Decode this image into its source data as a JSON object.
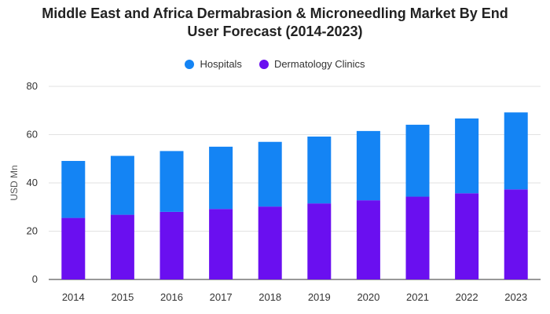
{
  "chart_data": {
    "type": "bar",
    "stacked": true,
    "title_line1": "Middle East and Africa Dermabrasion & Microneedling Market By End",
    "title_line2": "User Forecast (2014-2023)",
    "xlabel": "",
    "ylabel": "USD Mn",
    "ylim": [
      0,
      80
    ],
    "yticks": [
      "0",
      "20",
      "40",
      "60",
      "80"
    ],
    "grid": true,
    "legend_position": "top",
    "categories": [
      "2014",
      "2015",
      "2016",
      "2017",
      "2018",
      "2019",
      "2020",
      "2021",
      "2022",
      "2023"
    ],
    "series": [
      {
        "name": "Dermatology Clinics",
        "color": "#6a0ff0",
        "values": [
          25.5,
          26.8,
          28.0,
          29.2,
          30.2,
          31.5,
          32.8,
          34.3,
          35.7,
          37.3
        ]
      },
      {
        "name": "Hospitals",
        "color": "#1484f4",
        "values": [
          23.6,
          24.4,
          25.2,
          25.8,
          26.8,
          27.7,
          28.7,
          29.8,
          31.0,
          31.9
        ]
      }
    ],
    "legend": [
      {
        "name": "Hospitals",
        "color": "#1484f4"
      },
      {
        "name": "Dermatology Clinics",
        "color": "#6a0ff0"
      }
    ]
  }
}
